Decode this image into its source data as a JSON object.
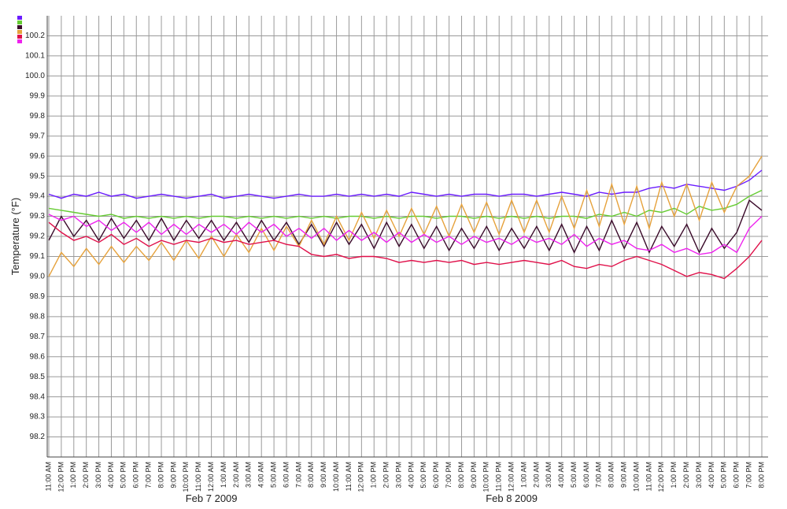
{
  "chart_data": {
    "type": "line",
    "y_label": "Temperature (°F)",
    "categories": [
      "11:00 AM",
      "12:00 PM",
      "1:00 PM",
      "2:00 PM",
      "3:00 PM",
      "4:00 PM",
      "5:00 PM",
      "6:00 PM",
      "7:00 PM",
      "8:00 PM",
      "9:00 PM",
      "10:00 PM",
      "11:00 PM",
      "12:00 AM",
      "1:00 AM",
      "2:00 AM",
      "3:00 AM",
      "4:00 AM",
      "5:00 AM",
      "6:00 AM",
      "7:00 AM",
      "8:00 AM",
      "9:00 AM",
      "10:00 AM",
      "11:00 AM",
      "12:00 PM",
      "1:00 PM",
      "2:00 PM",
      "3:00 PM",
      "4:00 PM",
      "5:00 PM",
      "6:00 PM",
      "7:00 PM",
      "8:00 PM",
      "9:00 PM",
      "10:00 PM",
      "11:00 PM",
      "12:00 AM",
      "1:00 AM",
      "2:00 AM",
      "3:00 AM",
      "4:00 AM",
      "5:00 AM",
      "6:00 AM",
      "7:00 AM",
      "8:00 AM",
      "9:00 AM",
      "10:00 AM",
      "11:00 AM",
      "12:00 PM",
      "1:00 PM",
      "2:00 PM",
      "3:00 PM",
      "4:00 PM",
      "5:00 PM",
      "6:00 PM",
      "7:00 PM",
      "8:00 PM"
    ],
    "date_labels": [
      {
        "label": "Feb 7 2009",
        "category_index": 13
      },
      {
        "label": "Feb 8 2009",
        "category_index": 37
      }
    ],
    "ylim": [
      98.1,
      100.3
    ],
    "yticks": [
      98.2,
      98.3,
      98.4,
      98.5,
      98.6,
      98.7,
      98.8,
      98.9,
      {
        "value": 99,
        "label": "99.0"
      },
      99.1,
      99.2,
      99.3,
      99.4,
      99.5,
      99.6,
      99.7,
      99.8,
      99.9,
      {
        "value": 100,
        "label": "100.0"
      },
      100.1,
      100.2
    ],
    "grid": true,
    "legend": "top-left",
    "series": [
      {
        "color": "#6a1cff",
        "values": [
          99.41,
          99.39,
          99.41,
          99.4,
          99.42,
          99.4,
          99.41,
          99.39,
          99.4,
          99.41,
          99.4,
          99.39,
          99.4,
          99.41,
          99.39,
          99.4,
          99.41,
          99.4,
          99.39,
          99.4,
          99.41,
          99.4,
          99.4,
          99.41,
          99.4,
          99.41,
          99.4,
          99.41,
          99.4,
          99.42,
          99.41,
          99.4,
          99.41,
          99.4,
          99.41,
          99.41,
          99.4,
          99.41,
          99.41,
          99.4,
          99.41,
          99.42,
          99.41,
          99.4,
          99.42,
          99.41,
          99.42,
          99.42,
          99.44,
          99.45,
          99.44,
          99.46,
          99.45,
          99.44,
          99.43,
          99.45,
          99.48,
          99.53
        ]
      },
      {
        "color": "#66cc33",
        "values": [
          99.34,
          99.33,
          99.32,
          99.31,
          99.3,
          99.31,
          99.29,
          99.3,
          99.29,
          99.3,
          99.29,
          99.3,
          99.29,
          99.3,
          99.3,
          99.29,
          99.3,
          99.29,
          99.3,
          99.29,
          99.3,
          99.29,
          99.3,
          99.29,
          99.3,
          99.3,
          99.29,
          99.3,
          99.29,
          99.3,
          99.3,
          99.29,
          99.3,
          99.3,
          99.29,
          99.3,
          99.29,
          99.3,
          99.29,
          99.3,
          99.29,
          99.3,
          99.3,
          99.29,
          99.31,
          99.3,
          99.32,
          99.3,
          99.33,
          99.32,
          99.34,
          99.31,
          99.35,
          99.33,
          99.34,
          99.36,
          99.4,
          99.43
        ]
      },
      {
        "color": "#3a0a2a",
        "values": [
          99.18,
          99.3,
          99.2,
          99.28,
          99.18,
          99.29,
          99.19,
          99.28,
          99.18,
          99.29,
          99.18,
          99.28,
          99.19,
          99.28,
          99.18,
          99.27,
          99.17,
          99.28,
          99.18,
          99.27,
          99.16,
          99.26,
          99.15,
          99.27,
          99.16,
          99.26,
          99.14,
          99.27,
          99.15,
          99.26,
          99.14,
          99.25,
          99.13,
          99.24,
          99.14,
          99.25,
          99.13,
          99.24,
          99.14,
          99.25,
          99.13,
          99.26,
          99.12,
          99.25,
          99.13,
          99.28,
          99.14,
          99.27,
          99.12,
          99.25,
          99.15,
          99.26,
          99.12,
          99.24,
          99.14,
          99.22,
          99.38,
          99.33
        ]
      },
      {
        "color": "#e6a23c",
        "values": [
          99.0,
          99.12,
          99.05,
          99.14,
          99.06,
          99.15,
          99.07,
          99.15,
          99.08,
          99.17,
          99.08,
          99.18,
          99.09,
          99.2,
          99.1,
          99.21,
          99.12,
          99.24,
          99.13,
          99.25,
          99.15,
          99.28,
          99.16,
          99.3,
          99.18,
          99.32,
          99.19,
          99.33,
          99.2,
          99.34,
          99.21,
          99.35,
          99.2,
          99.36,
          99.22,
          99.37,
          99.21,
          99.38,
          99.22,
          99.38,
          99.22,
          99.4,
          99.24,
          99.43,
          99.25,
          99.46,
          99.26,
          99.45,
          99.24,
          99.47,
          99.3,
          99.46,
          99.28,
          99.47,
          99.32,
          99.45,
          99.5,
          99.6
        ]
      },
      {
        "color": "#e0104a",
        "values": [
          99.27,
          99.22,
          99.18,
          99.2,
          99.17,
          99.21,
          99.16,
          99.19,
          99.15,
          99.18,
          99.16,
          99.18,
          99.17,
          99.19,
          99.17,
          99.18,
          99.16,
          99.17,
          99.18,
          99.16,
          99.15,
          99.11,
          99.1,
          99.11,
          99.09,
          99.1,
          99.1,
          99.09,
          99.07,
          99.08,
          99.07,
          99.08,
          99.07,
          99.08,
          99.06,
          99.07,
          99.06,
          99.07,
          99.08,
          99.07,
          99.06,
          99.08,
          99.05,
          99.04,
          99.06,
          99.05,
          99.08,
          99.1,
          99.08,
          99.06,
          99.03,
          99.0,
          99.02,
          99.01,
          98.99,
          99.04,
          99.1,
          99.18
        ]
      },
      {
        "color": "#ee22ee",
        "values": [
          99.31,
          99.28,
          99.3,
          99.25,
          99.28,
          99.23,
          99.27,
          99.22,
          99.27,
          99.21,
          99.26,
          99.21,
          99.26,
          99.22,
          99.26,
          99.21,
          99.27,
          99.22,
          99.26,
          99.2,
          99.24,
          99.19,
          99.24,
          99.18,
          99.23,
          99.18,
          99.22,
          99.17,
          99.22,
          99.17,
          99.21,
          99.17,
          99.2,
          99.16,
          99.2,
          99.17,
          99.19,
          99.16,
          99.2,
          99.17,
          99.19,
          99.16,
          99.21,
          99.15,
          99.19,
          99.16,
          99.18,
          99.14,
          99.13,
          99.16,
          99.12,
          99.14,
          99.11,
          99.12,
          99.16,
          99.12,
          99.24,
          99.3
        ]
      }
    ]
  }
}
